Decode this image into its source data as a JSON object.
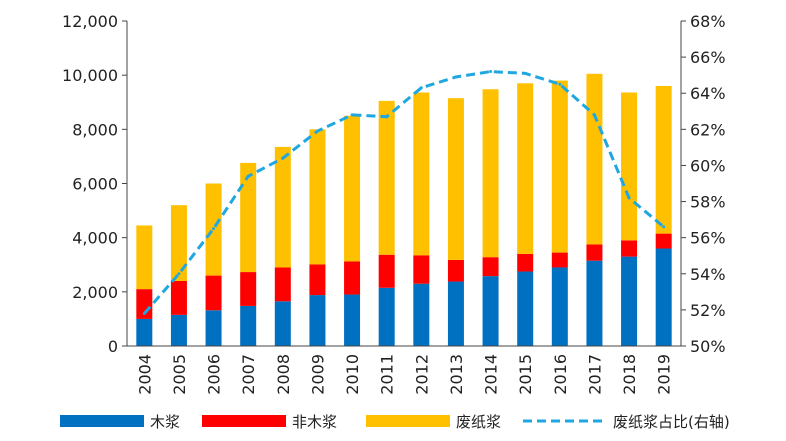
{
  "chart_data": {
    "type": "bar",
    "stacked": true,
    "categories": [
      "2004",
      "2005",
      "2006",
      "2007",
      "2008",
      "2009",
      "2010",
      "2011",
      "2012",
      "2013",
      "2014",
      "2015",
      "2016",
      "2017",
      "2018",
      "2019"
    ],
    "series": [
      {
        "name": "木浆",
        "type": "bar",
        "axis": "left",
        "color": "#0070C0",
        "values": [
          1000,
          1150,
          1320,
          1480,
          1650,
          1880,
          1900,
          2150,
          2300,
          2380,
          2580,
          2750,
          2900,
          3150,
          3300,
          3600
        ]
      },
      {
        "name": "非木浆",
        "type": "bar",
        "axis": "left",
        "color": "#FF0000",
        "values": [
          1100,
          1250,
          1280,
          1250,
          1250,
          1130,
          1220,
          1220,
          1050,
          800,
          700,
          650,
          550,
          600,
          600,
          550
        ]
      },
      {
        "name": "废纸浆",
        "type": "bar",
        "axis": "left",
        "color": "#FFC000",
        "values": [
          2350,
          2800,
          3400,
          4030,
          4450,
          4990,
          5380,
          5680,
          6010,
          5970,
          6200,
          6300,
          6350,
          6300,
          5460,
          5450
        ]
      },
      {
        "name": "废纸浆占比(右轴)",
        "type": "line",
        "axis": "right",
        "color": "#1EA7E1",
        "values": [
          51.8,
          54.0,
          56.5,
          59.4,
          60.4,
          61.9,
          62.8,
          62.7,
          64.3,
          64.9,
          65.2,
          65.1,
          64.5,
          62.8,
          58.2,
          56.6
        ]
      }
    ],
    "y_left": {
      "min": 0,
      "max": 12000,
      "ticks": [
        "0",
        "2,000",
        "4,000",
        "6,000",
        "8,000",
        "10,000",
        "12,000"
      ]
    },
    "y_right": {
      "min": 50,
      "max": 68,
      "ticks": [
        "50%",
        "52%",
        "54%",
        "56%",
        "58%",
        "60%",
        "62%",
        "64%",
        "66%",
        "68%"
      ]
    },
    "grid": false,
    "legend_position": "bottom",
    "title": "",
    "xlabel": "",
    "ylabel": ""
  }
}
